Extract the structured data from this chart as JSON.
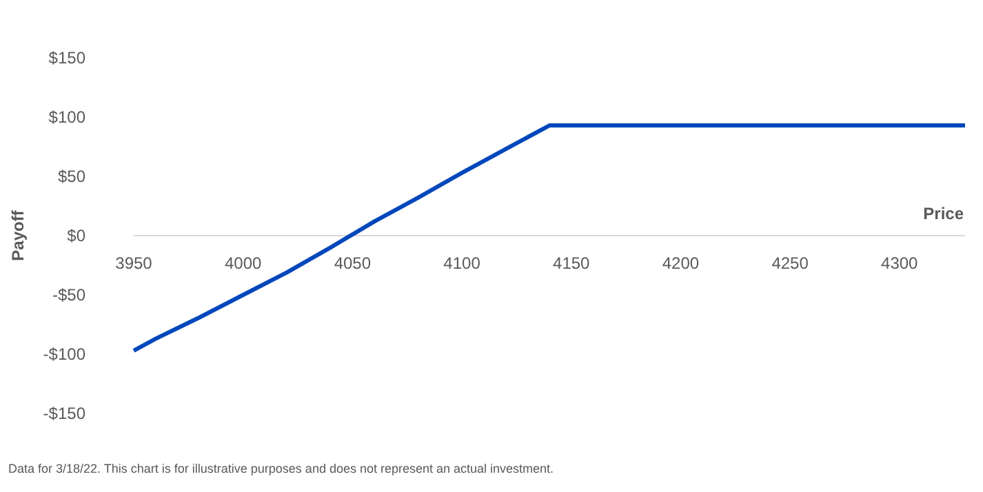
{
  "chart_data": {
    "type": "line",
    "xlabel": "Price",
    "ylabel": "Payoff",
    "annotations": [
      "Data for 3/18/22. This chart is for illustrative purposes and does not represent an actual investment."
    ],
    "series": [
      {
        "color": "#0047bb",
        "x": [
          3950,
          3960,
          3980,
          4000,
          4020,
          4040,
          4060,
          4080,
          4100,
          4120,
          4140,
          4200,
          4250,
          4300,
          4330
        ],
        "values": [
          -97,
          -87,
          -69,
          -50,
          -31,
          -10,
          12,
          32,
          53,
          73,
          93,
          93,
          93,
          93,
          93
        ]
      }
    ],
    "xlim": [
      3950,
      4330
    ],
    "xticks": [
      3950,
      4000,
      4050,
      4100,
      4150,
      4200,
      4250,
      4300
    ],
    "ylim": [
      -150,
      150
    ],
    "yticks": [
      {
        "value": -150,
        "label": "-$150"
      },
      {
        "value": -100,
        "label": "-$100"
      },
      {
        "value": -50,
        "label": "-$50"
      },
      {
        "value": 0,
        "label": "$0"
      },
      {
        "value": 50,
        "label": "$50"
      },
      {
        "value": 100,
        "label": "$100"
      },
      {
        "value": 150,
        "label": "$150"
      }
    ],
    "grid": false,
    "marker": "none",
    "line_style": "solid"
  }
}
